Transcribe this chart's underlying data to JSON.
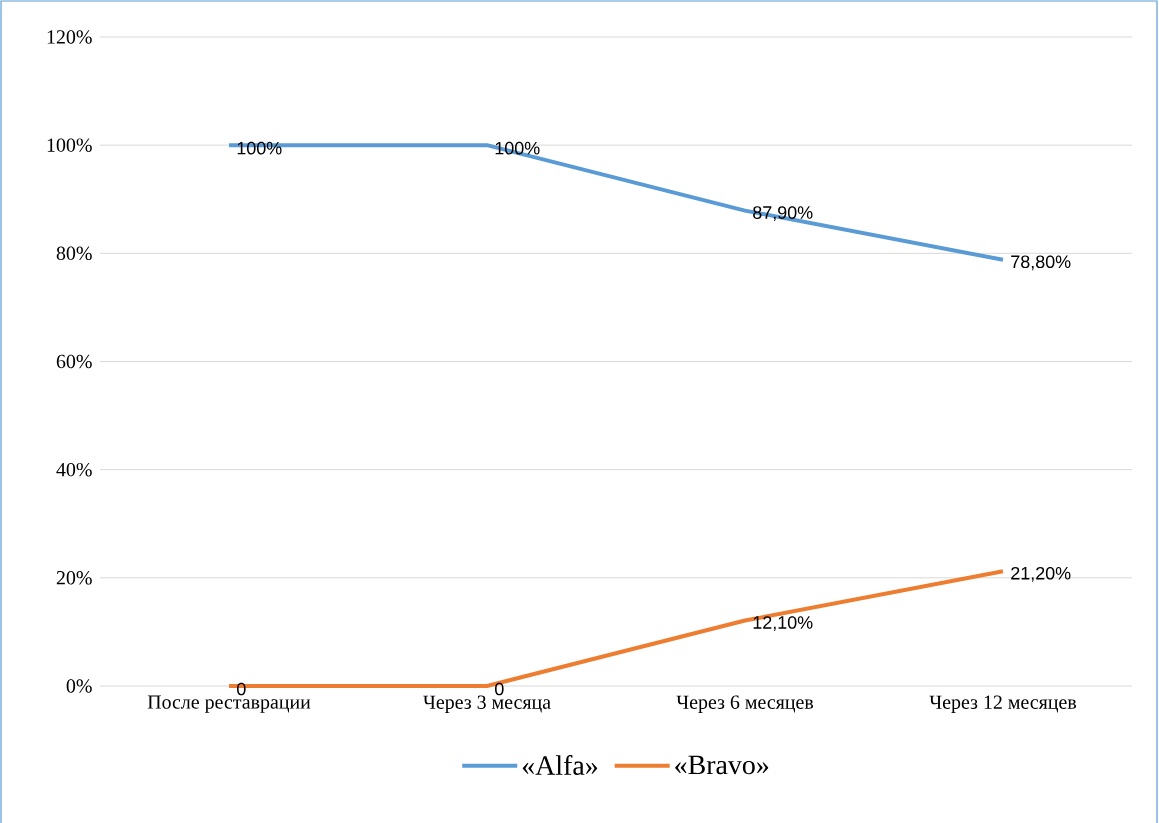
{
  "chart_data": {
    "type": "line",
    "categories": [
      "После реставрации",
      "Через  3 месяца",
      "Через 6 месяцев",
      "Через 12 месяцев"
    ],
    "series": [
      {
        "name": "«Alfa»",
        "color": "#5b9bd5",
        "values": [
          100,
          100,
          87.9,
          78.8
        ],
        "value_labels": [
          "100%",
          "100%",
          "87,90%",
          "78,80%"
        ]
      },
      {
        "name": "«Bravo»",
        "color": "#ed7d31",
        "values": [
          0,
          0,
          12.1,
          21.2
        ],
        "value_labels": [
          "0",
          "0",
          "12,10%",
          "21,20%"
        ]
      }
    ],
    "ylim": [
      0,
      120
    ],
    "yticks": [
      {
        "value": 0,
        "label": "0%"
      },
      {
        "value": 20,
        "label": "20%"
      },
      {
        "value": 40,
        "label": "40%"
      },
      {
        "value": 60,
        "label": "60%"
      },
      {
        "value": 80,
        "label": "80%"
      },
      {
        "value": 100,
        "label": "100%"
      },
      {
        "value": 120,
        "label": "120%"
      }
    ],
    "grid": "y",
    "legend": "bottom",
    "marker": "none",
    "line_style": "solid"
  }
}
